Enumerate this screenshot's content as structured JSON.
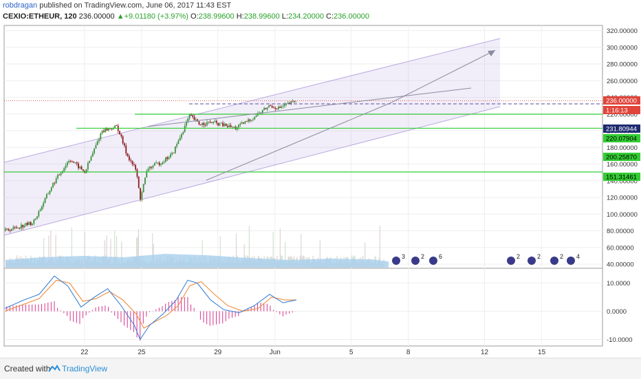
{
  "header": {
    "author": "robdragan",
    "published": "published on TradingView.com, June 06, 2017 11:43 EST",
    "symbol": "CEXIO:ETHEUR, 120",
    "last": "236.00000",
    "change": "+9.01180 (+3.97%)",
    "open_label": "O:",
    "open": "238.99600",
    "high_label": "H:",
    "high": "238.99600",
    "low_label": "L:",
    "low": "234.20000",
    "close_label": "C:",
    "close": "236.00000"
  },
  "footer": {
    "created": "Created with",
    "brand": "TradingView"
  },
  "colors": {
    "up": "#3a8f3a",
    "down": "#8a1a1a",
    "hline": "#33cc33",
    "channel": "#b9a8e0",
    "macd": "#3b82d6",
    "signal": "#f08c3c",
    "hist": "#d6338a",
    "volume": "#a8cfee",
    "price_badge": "#e0443a"
  },
  "chart_data": [
    {
      "type": "candlestick",
      "symbol": "CEXIO:ETHEUR",
      "interval": "120",
      "x_tick_labels": [
        "22",
        "25",
        "29",
        "Jun",
        "5",
        "8",
        "12",
        "15"
      ],
      "y_tick_labels": [
        "40.00000",
        "60.00000",
        "80.00000",
        "100.00000",
        "120.00000",
        "140.00000",
        "160.00000",
        "180.00000",
        "200.00000",
        "220.00000",
        "240.00000",
        "260.00000",
        "280.00000",
        "300.00000",
        "320.00000"
      ],
      "ylim": [
        30,
        330
      ],
      "grid": true,
      "close_anchors": [
        {
          "day": 0,
          "value": 80
        },
        {
          "day": 1.5,
          "value": 90
        },
        {
          "day": 2.5,
          "value": 135
        },
        {
          "day": 3.4,
          "value": 166
        },
        {
          "day": 4.2,
          "value": 150
        },
        {
          "day": 5.1,
          "value": 200
        },
        {
          "day": 5.9,
          "value": 205
        },
        {
          "day": 6.4,
          "value": 172
        },
        {
          "day": 6.9,
          "value": 152
        },
        {
          "day": 7.1,
          "value": 118
        },
        {
          "day": 7.5,
          "value": 155
        },
        {
          "day": 8.2,
          "value": 162
        },
        {
          "day": 8.8,
          "value": 172
        },
        {
          "day": 9.7,
          "value": 218
        },
        {
          "day": 10.2,
          "value": 208
        },
        {
          "day": 10.9,
          "value": 210
        },
        {
          "day": 12.1,
          "value": 203
        },
        {
          "day": 13.0,
          "value": 215
        },
        {
          "day": 13.9,
          "value": 230
        },
        {
          "day": 14.4,
          "value": 227
        },
        {
          "day": 15.3,
          "value": 236
        }
      ],
      "horizontal_levels": [
        231.80944,
        220.07904,
        200.2587,
        151.31461
      ],
      "current_price": 236.0,
      "axis_labels": [
        "236.00000",
        "1:16:13",
        "231.80944",
        "220.07904",
        "200.25870",
        "151.31461"
      ],
      "macd": {
        "y_tick_labels": [
          "10.0000",
          "0.0000",
          "-10.0000"
        ],
        "ylim": [
          -12,
          14
        ],
        "macd_line": [
          {
            "day": 0,
            "value": 1
          },
          {
            "day": 1.0,
            "value": 4
          },
          {
            "day": 1.8,
            "value": 6
          },
          {
            "day": 2.6,
            "value": 12.5
          },
          {
            "day": 3.3,
            "value": 9
          },
          {
            "day": 4.0,
            "value": 1.5
          },
          {
            "day": 4.7,
            "value": 5
          },
          {
            "day": 5.4,
            "value": 8
          },
          {
            "day": 6.1,
            "value": 2
          },
          {
            "day": 6.8,
            "value": -5
          },
          {
            "day": 7.1,
            "value": -10
          },
          {
            "day": 7.6,
            "value": -5
          },
          {
            "day": 8.3,
            "value": -1
          },
          {
            "day": 9.0,
            "value": 4
          },
          {
            "day": 9.6,
            "value": 11
          },
          {
            "day": 10.1,
            "value": 10
          },
          {
            "day": 10.8,
            "value": 4
          },
          {
            "day": 11.5,
            "value": 0.5
          },
          {
            "day": 12.3,
            "value": -0.5
          },
          {
            "day": 13.1,
            "value": 2
          },
          {
            "day": 13.9,
            "value": 6
          },
          {
            "day": 14.6,
            "value": 3
          },
          {
            "day": 15.3,
            "value": 4
          }
        ],
        "signal_line": [
          {
            "day": 0,
            "value": 0
          },
          {
            "day": 1.0,
            "value": 2.5
          },
          {
            "day": 1.8,
            "value": 4.5
          },
          {
            "day": 2.7,
            "value": 11
          },
          {
            "day": 3.4,
            "value": 10
          },
          {
            "day": 4.1,
            "value": 3.5
          },
          {
            "day": 4.8,
            "value": 4.5
          },
          {
            "day": 5.5,
            "value": 7
          },
          {
            "day": 6.2,
            "value": 4
          },
          {
            "day": 6.9,
            "value": -1
          },
          {
            "day": 7.3,
            "value": -6
          },
          {
            "day": 7.8,
            "value": -4
          },
          {
            "day": 8.5,
            "value": -1.5
          },
          {
            "day": 9.1,
            "value": 2
          },
          {
            "day": 9.7,
            "value": 9
          },
          {
            "day": 10.3,
            "value": 10.5
          },
          {
            "day": 11.0,
            "value": 6
          },
          {
            "day": 11.7,
            "value": 2
          },
          {
            "day": 12.5,
            "value": 0
          },
          {
            "day": 13.3,
            "value": 1
          },
          {
            "day": 14.0,
            "value": 5
          },
          {
            "day": 14.7,
            "value": 4
          },
          {
            "day": 15.3,
            "value": 4
          }
        ]
      }
    }
  ]
}
